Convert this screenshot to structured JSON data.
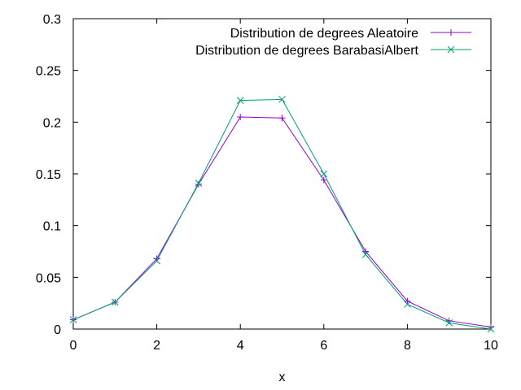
{
  "chart_data": {
    "type": "line",
    "xlabel": "x",
    "ylabel": "",
    "xlim": [
      0,
      10
    ],
    "ylim": [
      0,
      0.3
    ],
    "xticks": [
      0,
      2,
      4,
      6,
      8,
      10
    ],
    "xtick_labels": [
      "0",
      "2",
      "4",
      "6",
      "8",
      "10"
    ],
    "yticks": [
      0,
      0.05,
      0.1,
      0.15,
      0.2,
      0.25,
      0.3
    ],
    "ytick_labels": [
      "0",
      "0.05",
      "0.1",
      "0.15",
      "0.2",
      "0.25",
      "0.3"
    ],
    "grid": false,
    "legend": "top-right",
    "x": [
      0,
      1,
      2,
      3,
      4,
      5,
      6,
      7,
      8,
      9,
      10
    ],
    "series": [
      {
        "name": "Distribution de degrees Aleatoire",
        "color": "#9400d3",
        "marker": "plus",
        "values": [
          0.009,
          0.026,
          0.068,
          0.14,
          0.205,
          0.204,
          0.144,
          0.075,
          0.027,
          0.008,
          0.002
        ]
      },
      {
        "name": "Distribution de degrees BarabasiAlbert",
        "color": "#009e73",
        "marker": "cross",
        "values": [
          0.009,
          0.026,
          0.066,
          0.141,
          0.221,
          0.222,
          0.15,
          0.072,
          0.024,
          0.006,
          0.0
        ]
      }
    ]
  }
}
